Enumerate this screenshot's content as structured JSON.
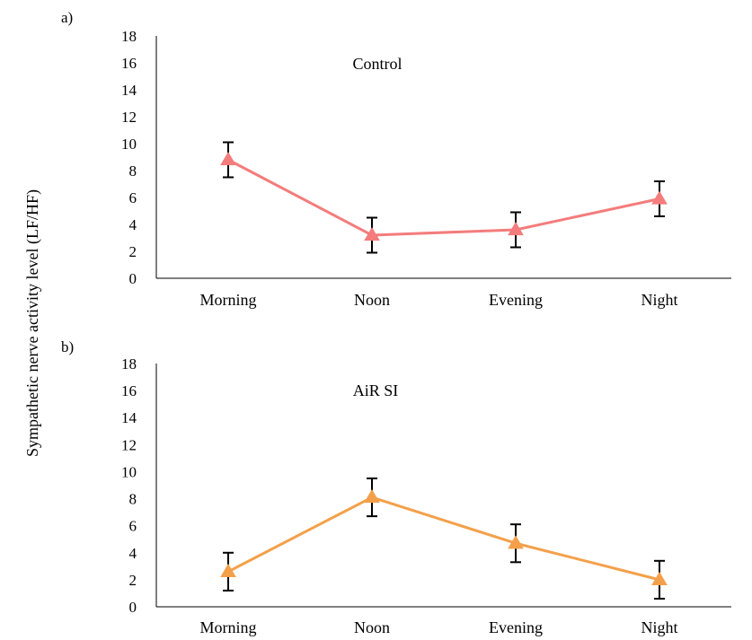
{
  "figure": {
    "ylabel": "Sympathetic nerve activity level (LF/HF)"
  },
  "chart_data": [
    {
      "type": "line",
      "panel_label": "a)",
      "title": "Control",
      "categories": [
        "Morning",
        "Noon",
        "Evening",
        "Night"
      ],
      "series": [
        {
          "values": [
            8.8,
            3.2,
            3.6,
            5.9
          ],
          "errors": [
            1.3,
            1.3,
            1.3,
            1.3
          ],
          "color": "#F47C7C",
          "marker": "triangle"
        }
      ],
      "ylim": [
        0,
        18
      ],
      "yticks": [
        0,
        2,
        4,
        6,
        8,
        10,
        12,
        14,
        16,
        18
      ],
      "grid": false
    },
    {
      "type": "line",
      "panel_label": "b)",
      "title": "AiR SI",
      "categories": [
        "Morning",
        "Noon",
        "Evening",
        "Night"
      ],
      "series": [
        {
          "values": [
            2.6,
            8.1,
            4.7,
            2.0
          ],
          "errors": [
            1.4,
            1.4,
            1.4,
            1.4
          ],
          "color": "#F4A04A",
          "marker": "triangle"
        }
      ],
      "ylim": [
        0,
        18
      ],
      "yticks": [
        0,
        2,
        4,
        6,
        8,
        10,
        12,
        14,
        16,
        18
      ],
      "grid": false
    }
  ]
}
